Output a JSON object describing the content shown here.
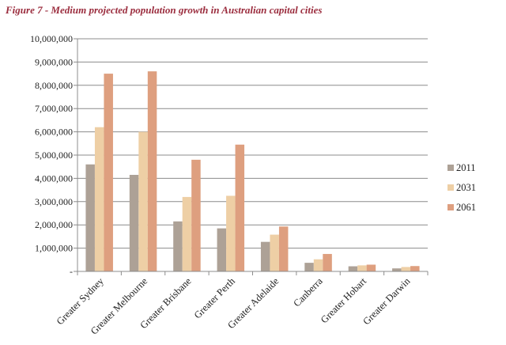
{
  "chart_data": {
    "type": "bar",
    "title": "Figure 7 - Medium projected population growth in Australian capital cities",
    "categories": [
      "Greater Sydney",
      "Greater Melbourne",
      "Greater Brisbane",
      "Greater Perth",
      "Greater Adelaide",
      "Canberra",
      "Greater Hobart",
      "Greater Darwin"
    ],
    "series": [
      {
        "name": "2011",
        "color": "#ada196",
        "values": [
          4600000,
          4150000,
          2150000,
          1850000,
          1270000,
          370000,
          220000,
          130000
        ]
      },
      {
        "name": "2031",
        "color": "#eecfa5",
        "values": [
          6200000,
          6000000,
          3200000,
          3250000,
          1580000,
          520000,
          260000,
          190000
        ]
      },
      {
        "name": "2061",
        "color": "#de9f7f",
        "values": [
          8500000,
          8600000,
          4800000,
          5450000,
          1930000,
          750000,
          290000,
          230000
        ]
      }
    ],
    "y_ticks": [
      "-",
      "1,000,000",
      "2,000,000",
      "3,000,000",
      "4,000,000",
      "5,000,000",
      "6,000,000",
      "7,000,000",
      "8,000,000",
      "9,000,000",
      "10,000,000"
    ],
    "ylim": [
      0,
      10000000
    ],
    "grid": true,
    "legend_position": "right"
  }
}
